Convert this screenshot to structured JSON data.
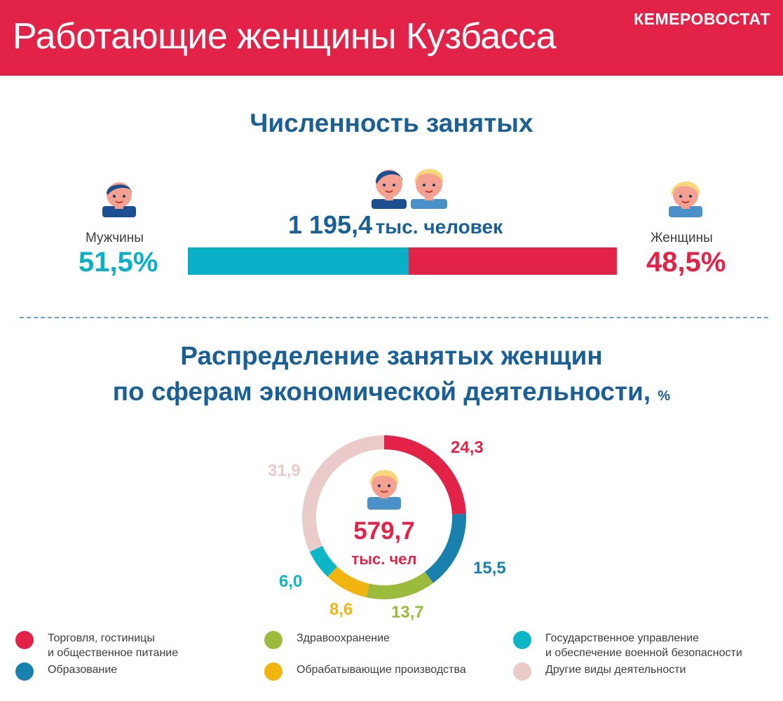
{
  "header": {
    "title": "Работающие женщины Кузбасса",
    "brand": "КЕМЕРОВОСТАТ"
  },
  "employment": {
    "title": "Численность занятых",
    "total_value": "1 195,4",
    "total_unit": "тыс. человек",
    "men_label": "Мужчины",
    "men_pct_text": "51,5%",
    "women_label": "Женщины",
    "women_pct_text": "48,5%"
  },
  "distribution": {
    "title_line1": "Распределение занятых женщин",
    "title_line2": "по сферам экономической деятельности,",
    "title_unit": "%",
    "center_value": "579,7",
    "center_unit": "тыс. чел"
  },
  "colors": {
    "header_red": "#e32248",
    "title_blue": "#1a5f95",
    "men_teal": "#0ab0c7",
    "women_red": "#e32248"
  },
  "icons": {
    "man": "man-avatar-icon",
    "woman": "woman-avatar-icon",
    "couple": "couple-avatar-icon"
  },
  "chart_data": [
    {
      "type": "bar",
      "categories": [
        "Мужчины",
        "Женщины"
      ],
      "values": [
        51.5,
        48.5
      ],
      "colors": [
        "#0ab0c7",
        "#e32248"
      ]
    },
    {
      "type": "pie",
      "categories": [
        "Торговля, гостиницы\nи общественное питание",
        "Образование",
        "Здравоохранение",
        "Обрабатывающие производства",
        "Государственное управление\nи обеспечение военной безопасности",
        "Другие виды деятельности"
      ],
      "values": [
        24.3,
        15.5,
        13.7,
        8.6,
        6.0,
        31.9
      ],
      "value_labels": [
        "24,3",
        "15,5",
        "13,7",
        "8,6",
        "6,0",
        "31,9"
      ],
      "colors": [
        "#e32248",
        "#1a80ad",
        "#9cba3b",
        "#f2b50f",
        "#0cb6c5",
        "#ebcaca"
      ]
    }
  ]
}
